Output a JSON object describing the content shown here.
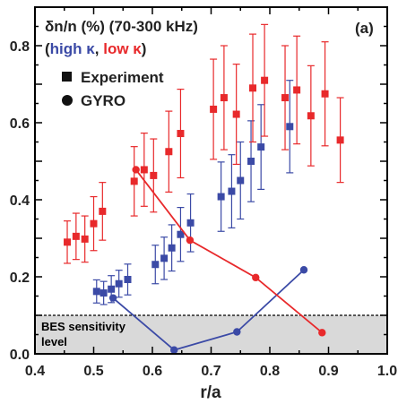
{
  "chart_data": {
    "type": "scatter",
    "title_line1": "δn/n (%) (70-300 kHz)",
    "title_line2": {
      "open": "(",
      "high": "high κ",
      "comma": ", ",
      "low": "low κ",
      "close": ")"
    },
    "panel_label": "(a)",
    "xlabel": "r/a",
    "ylabel": "",
    "xlim": [
      0.4,
      1.0
    ],
    "ylim": [
      0.0,
      0.9
    ],
    "xticks": [
      "0.4",
      "0.5",
      "0.6",
      "0.7",
      "0.8",
      "0.9",
      "1.0"
    ],
    "yticks": [
      "0.0",
      "0.2",
      "0.4",
      "0.6",
      "0.8"
    ],
    "legend": [
      {
        "label": "Experiment",
        "marker": "square"
      },
      {
        "label": "GYRO",
        "marker": "circle"
      }
    ],
    "threshold": {
      "value": 0.1,
      "label_line1": "BES sensitivity",
      "label_line2": "level"
    },
    "colors": {
      "high_kappa": "#3b4aa6",
      "low_kappa": "#e8292b",
      "threshold_fill": "#d9d9d9"
    },
    "series": [
      {
        "name": "high κ Experiment",
        "color": "#3b4aa6",
        "marker": "square",
        "points": [
          {
            "x": 0.505,
            "y": 0.162,
            "err": 0.03
          },
          {
            "x": 0.517,
            "y": 0.158,
            "err": 0.03
          },
          {
            "x": 0.53,
            "y": 0.168,
            "err": 0.035
          },
          {
            "x": 0.543,
            "y": 0.182,
            "err": 0.035
          },
          {
            "x": 0.558,
            "y": 0.193,
            "err": 0.04
          },
          {
            "x": 0.605,
            "y": 0.232,
            "err": 0.05
          },
          {
            "x": 0.62,
            "y": 0.248,
            "err": 0.055
          },
          {
            "x": 0.633,
            "y": 0.275,
            "err": 0.06
          },
          {
            "x": 0.648,
            "y": 0.31,
            "err": 0.07
          },
          {
            "x": 0.665,
            "y": 0.34,
            "err": 0.075
          },
          {
            "x": 0.717,
            "y": 0.408,
            "err": 0.09
          },
          {
            "x": 0.735,
            "y": 0.422,
            "err": 0.095
          },
          {
            "x": 0.75,
            "y": 0.45,
            "err": 0.1
          },
          {
            "x": 0.768,
            "y": 0.5,
            "err": 0.105
          },
          {
            "x": 0.785,
            "y": 0.537,
            "err": 0.11
          },
          {
            "x": 0.834,
            "y": 0.59,
            "err": 0.12
          }
        ]
      },
      {
        "name": "low κ Experiment",
        "color": "#e8292b",
        "marker": "square",
        "points": [
          {
            "x": 0.455,
            "y": 0.29,
            "err": 0.055
          },
          {
            "x": 0.47,
            "y": 0.305,
            "err": 0.06
          },
          {
            "x": 0.485,
            "y": 0.298,
            "err": 0.06
          },
          {
            "x": 0.5,
            "y": 0.338,
            "err": 0.07
          },
          {
            "x": 0.515,
            "y": 0.37,
            "err": 0.075
          },
          {
            "x": 0.569,
            "y": 0.448,
            "err": 0.09
          },
          {
            "x": 0.586,
            "y": 0.478,
            "err": 0.095
          },
          {
            "x": 0.602,
            "y": 0.463,
            "err": 0.095
          },
          {
            "x": 0.628,
            "y": 0.525,
            "err": 0.105
          },
          {
            "x": 0.648,
            "y": 0.572,
            "err": 0.115
          },
          {
            "x": 0.704,
            "y": 0.635,
            "err": 0.13
          },
          {
            "x": 0.722,
            "y": 0.665,
            "err": 0.135
          },
          {
            "x": 0.743,
            "y": 0.622,
            "err": 0.13
          },
          {
            "x": 0.771,
            "y": 0.69,
            "err": 0.14
          },
          {
            "x": 0.791,
            "y": 0.71,
            "err": 0.145
          },
          {
            "x": 0.826,
            "y": 0.665,
            "err": 0.135
          },
          {
            "x": 0.846,
            "y": 0.685,
            "err": 0.14
          },
          {
            "x": 0.87,
            "y": 0.618,
            "err": 0.13
          },
          {
            "x": 0.894,
            "y": 0.675,
            "err": 0.135
          },
          {
            "x": 0.92,
            "y": 0.555,
            "err": 0.11
          }
        ]
      },
      {
        "name": "high κ GYRO",
        "color": "#3b4aa6",
        "marker": "circle",
        "line": true,
        "points": [
          {
            "x": 0.533,
            "y": 0.145
          },
          {
            "x": 0.637,
            "y": 0.01
          },
          {
            "x": 0.744,
            "y": 0.057
          },
          {
            "x": 0.858,
            "y": 0.218
          }
        ]
      },
      {
        "name": "low κ GYRO",
        "color": "#e8292b",
        "marker": "circle",
        "line": true,
        "points": [
          {
            "x": 0.572,
            "y": 0.478
          },
          {
            "x": 0.664,
            "y": 0.295
          },
          {
            "x": 0.776,
            "y": 0.198
          },
          {
            "x": 0.889,
            "y": 0.055
          }
        ]
      }
    ]
  }
}
